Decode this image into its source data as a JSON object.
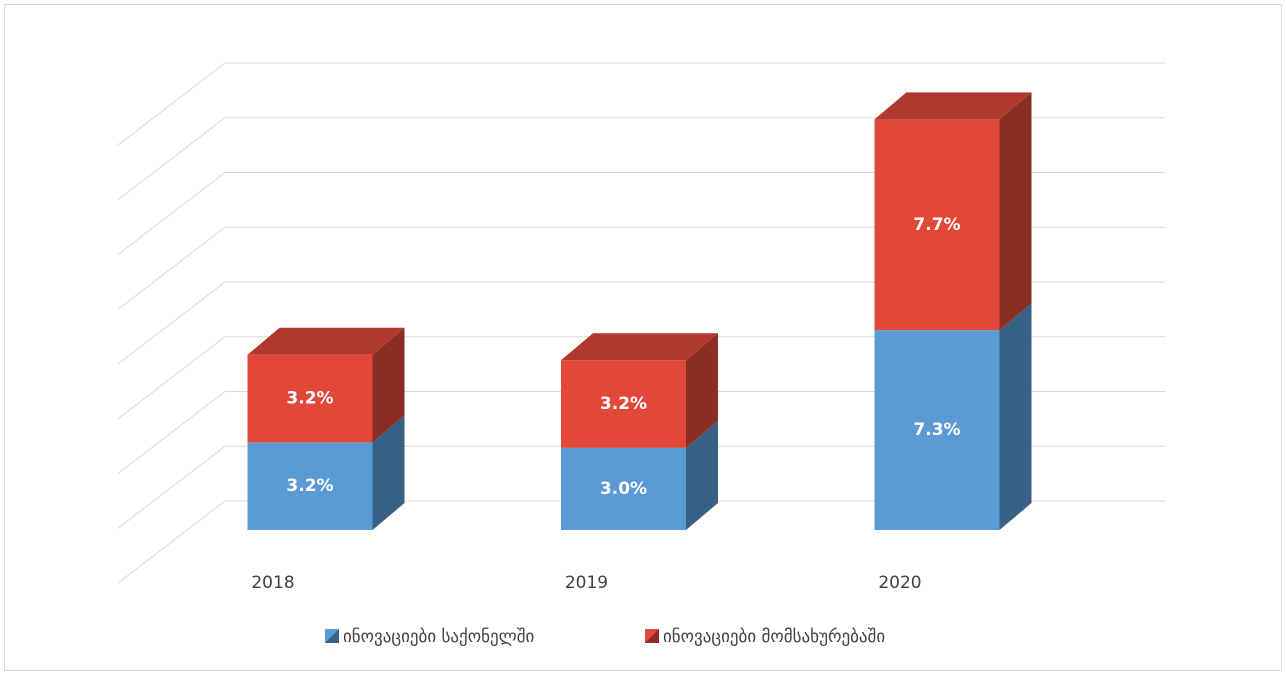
{
  "chart_data": {
    "type": "bar3d_stacked",
    "categories": [
      "2018",
      "2019",
      "2020"
    ],
    "series": [
      {
        "name": "ინოვაციები საქონელში",
        "color": "#5b9bd5",
        "values": [
          3.2,
          3.0,
          7.3
        ],
        "value_labels": [
          "3.2%",
          "3.0%",
          "7.3%"
        ]
      },
      {
        "name": "ინოვაციები მომსახურებაში",
        "color": "#e2483a",
        "values": [
          3.2,
          3.2,
          7.7
        ],
        "value_labels": [
          "3.2%",
          "3.2%",
          "7.7%"
        ]
      }
    ],
    "ylim": [
      0,
      16
    ],
    "yticks": [
      0,
      2,
      4,
      6,
      8,
      10,
      12,
      14,
      16
    ],
    "grid": true,
    "legend": "bottom"
  }
}
